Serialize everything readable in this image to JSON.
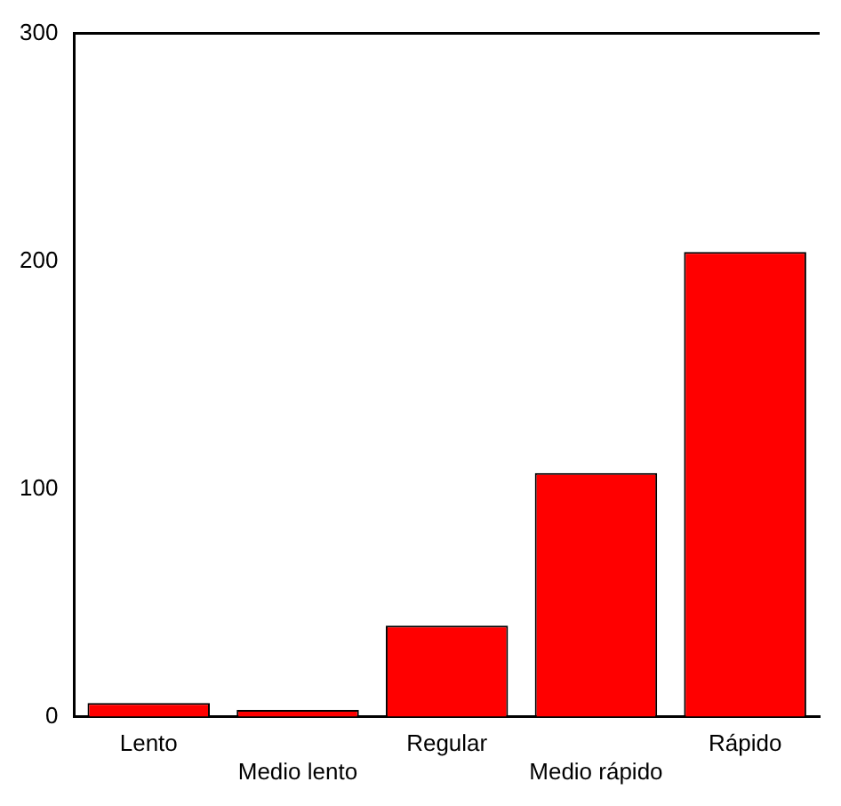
{
  "chart_data": {
    "type": "bar",
    "categories": [
      "Lento",
      "Medio lento",
      "Regular",
      "Medio rápido",
      "Rápido"
    ],
    "values": [
      6,
      3,
      40,
      107,
      204
    ],
    "color": "#ff0000",
    "ylim": [
      0,
      300
    ],
    "yticks": [
      0,
      100,
      200,
      300
    ],
    "grid": false,
    "legend": false
  }
}
